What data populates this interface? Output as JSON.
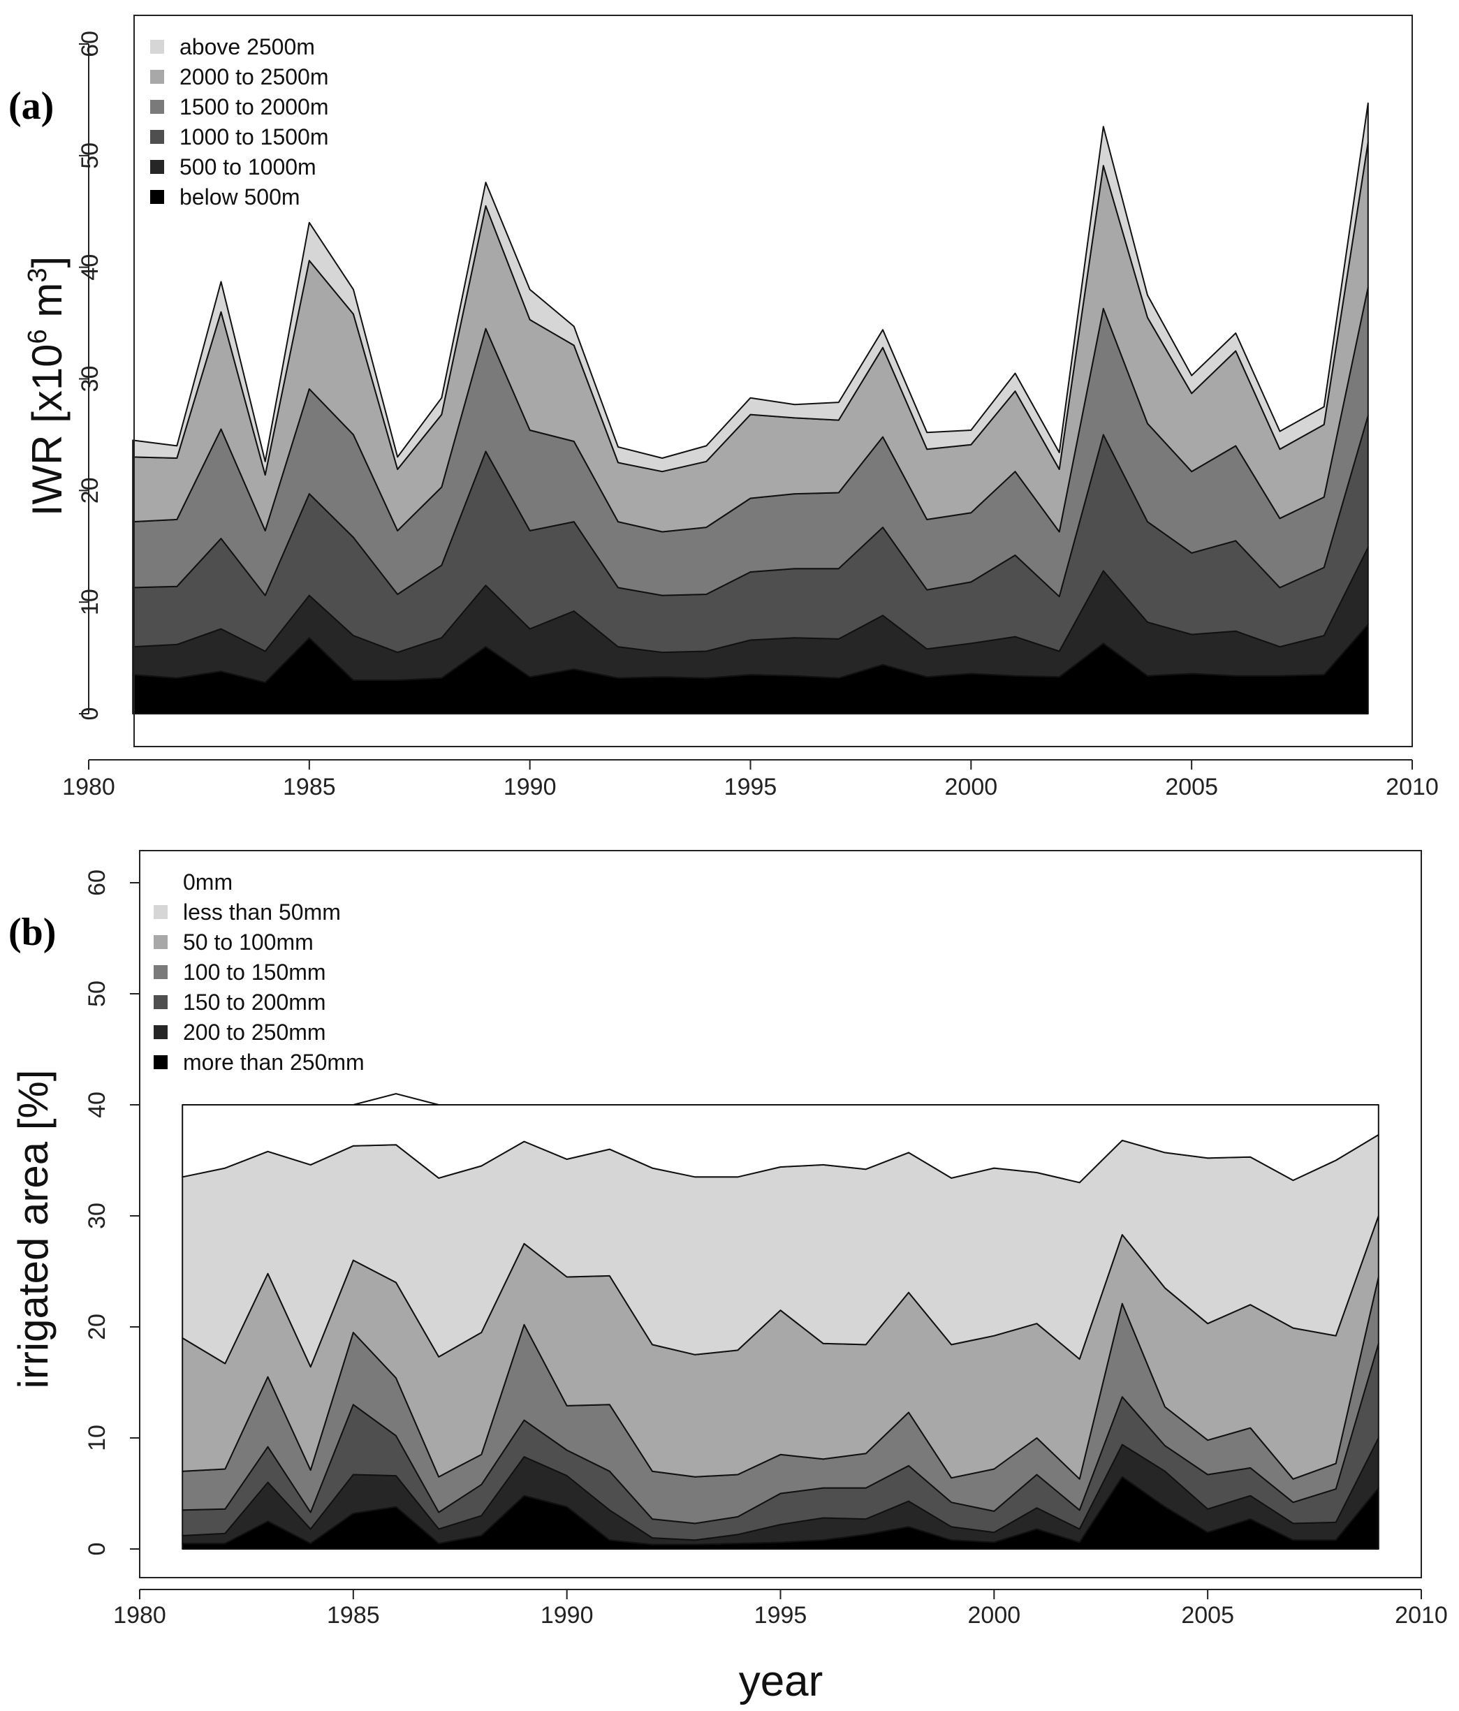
{
  "chart_data": [
    {
      "type": "area",
      "stacked": true,
      "panel_label": "(a)",
      "ylabel": "IWR [x10⁶ m³]",
      "ylabel_parts": {
        "prefix": "IWR [x10",
        "exp1": "6",
        "mid": " m",
        "exp2": "3",
        "suffix": "]"
      },
      "xlabel": "",
      "xlim": [
        1980,
        2010
      ],
      "ylim": [
        0,
        60
      ],
      "x_ticks": [
        "1980",
        "1985",
        "1990",
        "1995",
        "2000",
        "2005",
        "2010"
      ],
      "y_ticks": [
        "0",
        "10",
        "20",
        "30",
        "40",
        "50",
        "60"
      ],
      "legend_position": "top-left",
      "x": [
        1981,
        1982,
        1983,
        1984,
        1985,
        1986,
        1987,
        1988,
        1989,
        1990,
        1991,
        1992,
        1993,
        1994,
        1995,
        1996,
        1997,
        1998,
        1999,
        2000,
        2001,
        2002,
        2003,
        2004,
        2005,
        2006,
        2007,
        2008,
        2009
      ],
      "series": [
        {
          "name": "below 500m",
          "color": "#000000",
          "values": [
            3.5,
            3.2,
            3.8,
            2.8,
            6.8,
            3.0,
            3.0,
            3.2,
            6.0,
            3.3,
            4.0,
            3.2,
            3.3,
            3.2,
            3.5,
            3.4,
            3.2,
            4.4,
            3.3,
            3.6,
            3.4,
            3.3,
            6.3,
            3.4,
            3.6,
            3.4,
            3.4,
            3.5,
            8.0
          ]
        },
        {
          "name": "500 to 1000m",
          "color": "#262626",
          "values": [
            2.5,
            3.0,
            3.8,
            2.8,
            3.8,
            4.0,
            2.5,
            3.6,
            5.5,
            4.3,
            5.2,
            2.8,
            2.2,
            2.4,
            3.1,
            3.4,
            3.5,
            4.4,
            2.5,
            2.7,
            3.5,
            2.3,
            6.5,
            4.8,
            3.5,
            4.0,
            2.6,
            3.5,
            6.9
          ]
        },
        {
          "name": "1000 to 1500m",
          "color": "#4f4f4f",
          "values": [
            5.3,
            5.2,
            8.1,
            5.0,
            9.1,
            8.8,
            5.2,
            6.5,
            12.0,
            8.8,
            8.0,
            5.3,
            5.1,
            5.1,
            6.1,
            6.2,
            6.3,
            7.9,
            5.3,
            5.5,
            7.3,
            4.9,
            12.2,
            9.0,
            7.3,
            8.1,
            5.3,
            6.1,
            11.8
          ]
        },
        {
          "name": "1500 to 2000m",
          "color": "#7a7a7a",
          "values": [
            5.9,
            6.0,
            9.8,
            5.8,
            9.4,
            9.2,
            5.7,
            7.0,
            11.0,
            9.0,
            7.2,
            5.9,
            5.7,
            6.0,
            6.6,
            6.7,
            6.8,
            8.1,
            6.3,
            6.2,
            7.5,
            5.8,
            11.3,
            8.8,
            7.3,
            8.5,
            6.2,
            6.3,
            11.5
          ]
        },
        {
          "name": "2000 to 2500m",
          "color": "#a8a8a8",
          "values": [
            5.8,
            5.5,
            10.5,
            5.0,
            11.5,
            10.8,
            5.5,
            6.5,
            11.0,
            9.9,
            8.6,
            5.3,
            5.4,
            5.9,
            7.5,
            6.8,
            6.5,
            8.0,
            6.3,
            6.1,
            7.2,
            5.6,
            12.8,
            9.5,
            7.0,
            8.5,
            6.2,
            6.5,
            13.0
          ]
        },
        {
          "name": "above 2500m",
          "color": "#d6d6d6",
          "values": [
            1.5,
            1.1,
            2.7,
            1.2,
            3.4,
            2.2,
            1.1,
            1.5,
            2.1,
            2.7,
            1.7,
            1.4,
            1.2,
            1.4,
            1.5,
            1.2,
            1.6,
            1.6,
            1.5,
            1.3,
            1.6,
            1.5,
            3.5,
            2.0,
            1.6,
            1.6,
            1.6,
            1.6,
            3.5
          ]
        }
      ]
    },
    {
      "type": "area",
      "stacked": true,
      "panel_label": "(b)",
      "ylabel": "irrigated area [%]",
      "xlabel": "year",
      "xlim": [
        1980,
        2010
      ],
      "ylim": [
        0,
        60
      ],
      "x_ticks": [
        "1980",
        "1985",
        "1990",
        "1995",
        "2000",
        "2005",
        "2010"
      ],
      "y_ticks": [
        "0",
        "10",
        "20",
        "30",
        "40",
        "50",
        "60"
      ],
      "legend_position": "top-left",
      "reference_line": 40,
      "x": [
        1981,
        1982,
        1983,
        1984,
        1985,
        1986,
        1987,
        1988,
        1989,
        1990,
        1991,
        1992,
        1993,
        1994,
        1995,
        1996,
        1997,
        1998,
        1999,
        2000,
        2001,
        2002,
        2003,
        2004,
        2005,
        2006,
        2007,
        2008,
        2009
      ],
      "series": [
        {
          "name": "more than 250mm",
          "color": "#000000",
          "values": [
            0.5,
            0.5,
            2.5,
            0.5,
            3.2,
            3.8,
            0.5,
            1.2,
            4.8,
            3.8,
            0.8,
            0.4,
            0.4,
            0.5,
            0.6,
            0.8,
            1.3,
            2.0,
            0.8,
            0.6,
            1.8,
            0.6,
            6.5,
            3.8,
            1.5,
            2.7,
            0.8,
            0.8,
            5.5
          ]
        },
        {
          "name": "200 to 250mm",
          "color": "#262626",
          "values": [
            0.7,
            0.9,
            3.5,
            1.3,
            3.5,
            2.8,
            1.3,
            1.8,
            3.5,
            2.8,
            2.7,
            0.6,
            0.4,
            0.8,
            1.6,
            2.0,
            1.4,
            2.3,
            1.2,
            0.9,
            1.9,
            1.2,
            2.9,
            3.2,
            2.1,
            2.1,
            1.5,
            1.6,
            4.5
          ]
        },
        {
          "name": "150 to 200mm",
          "color": "#4f4f4f",
          "values": [
            2.3,
            2.2,
            3.2,
            1.5,
            6.3,
            3.6,
            1.5,
            2.8,
            3.3,
            2.3,
            3.5,
            1.7,
            1.5,
            1.6,
            2.8,
            2.7,
            2.8,
            3.2,
            2.2,
            1.9,
            3.0,
            1.7,
            4.3,
            2.3,
            3.1,
            2.5,
            1.9,
            3.0,
            8.5
          ]
        },
        {
          "name": "100 to 150mm",
          "color": "#7a7a7a",
          "values": [
            3.5,
            3.6,
            6.3,
            3.8,
            6.5,
            5.2,
            3.2,
            2.7,
            8.6,
            4.0,
            6.0,
            4.3,
            4.2,
            3.8,
            3.5,
            2.6,
            3.1,
            4.8,
            2.2,
            3.8,
            3.3,
            2.8,
            8.4,
            3.5,
            3.1,
            3.6,
            2.1,
            2.3,
            6.0
          ]
        },
        {
          "name": "50 to 100mm",
          "color": "#a8a8a8",
          "values": [
            12.0,
            9.5,
            9.3,
            9.3,
            6.5,
            8.6,
            10.8,
            11.0,
            7.3,
            11.6,
            11.6,
            11.4,
            11.0,
            11.2,
            13.0,
            10.4,
            9.8,
            10.8,
            12.0,
            12.0,
            10.3,
            10.8,
            6.2,
            10.7,
            10.5,
            11.1,
            13.6,
            11.5,
            5.5
          ]
        },
        {
          "name": "less than 50mm",
          "color": "#d6d6d6",
          "values": [
            14.5,
            17.6,
            11.0,
            18.2,
            10.3,
            12.4,
            16.1,
            15.0,
            9.2,
            10.6,
            11.4,
            15.9,
            16.0,
            15.6,
            12.9,
            16.1,
            15.8,
            12.6,
            15.0,
            15.1,
            13.6,
            15.9,
            8.5,
            12.2,
            14.9,
            13.3,
            13.3,
            15.8,
            7.3
          ]
        },
        {
          "name": "0mm",
          "color": "#ffffff",
          "values": [
            6.5,
            5.7,
            4.2,
            5.4,
            3.7,
            4.6,
            6.6,
            5.5,
            3.3,
            4.9,
            4.0,
            5.7,
            6.5,
            6.5,
            5.6,
            5.4,
            5.8,
            4.3,
            6.6,
            5.7,
            6.1,
            7.0,
            3.2,
            4.3,
            4.8,
            4.7,
            6.8,
            5.0,
            2.7
          ]
        }
      ]
    }
  ]
}
